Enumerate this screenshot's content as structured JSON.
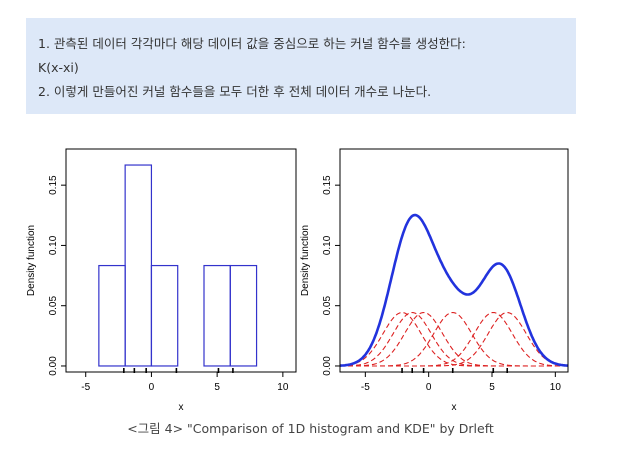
{
  "note": {
    "line1": "1. 관측된 데이터 각각마다 해당 데이터 값을 중심으로 하는 커널 함수를 생성한다:",
    "line2": "K(x-xi)",
    "line3": "2. 이렇게 만들어진 커널 함수들을 모두 더한 후 전체 데이터 개수로 나눈다."
  },
  "caption": "<그림 4> \"Comparison of 1D histogram and KDE\" by Drleft",
  "chart_data": [
    {
      "type": "bar",
      "subtype": "histogram",
      "xlabel": "x",
      "ylabel": "Density function",
      "xlim": [
        -6.5,
        11
      ],
      "ylim": [
        -0.005,
        0.18
      ],
      "x_ticks": [
        -5,
        0,
        5,
        10
      ],
      "y_ticks": [
        0.0,
        0.05,
        0.1,
        0.15
      ],
      "y_tick_labels": [
        "0.00",
        "0.05",
        "0.10",
        "0.15"
      ],
      "bins": [
        {
          "x0": -4,
          "x1": -2,
          "value": 0.0833
        },
        {
          "x0": -2,
          "x1": 0,
          "value": 0.1667
        },
        {
          "x0": 0,
          "x1": 2,
          "value": 0.0833
        },
        {
          "x0": 2,
          "x1": 4,
          "value": 0.0
        },
        {
          "x0": 4,
          "x1": 6,
          "value": 0.0833
        },
        {
          "x0": 6,
          "x1": 8,
          "value": 0.0833
        }
      ],
      "rug": [
        -2.1,
        -1.3,
        -0.4,
        1.9,
        5.1,
        6.2
      ],
      "bar_color": "#3333cc"
    },
    {
      "type": "line",
      "subtype": "kde",
      "xlabel": "x",
      "ylabel": "Density function",
      "xlim": [
        -7,
        11
      ],
      "ylim": [
        -0.005,
        0.18
      ],
      "x_ticks": [
        -5,
        0,
        5,
        10
      ],
      "y_ticks": [
        0.0,
        0.05,
        0.1,
        0.15
      ],
      "y_tick_labels": [
        "0.00",
        "0.05",
        "0.10",
        "0.15"
      ],
      "points": [
        -2.1,
        -1.3,
        -0.4,
        1.9,
        5.1,
        6.2
      ],
      "bandwidth": 1.5,
      "rug": [
        -2.1,
        -1.3,
        -0.4,
        1.9,
        5.1,
        6.2
      ],
      "kde_color": "#2233dd",
      "kernel_color": "#dd2222"
    }
  ]
}
